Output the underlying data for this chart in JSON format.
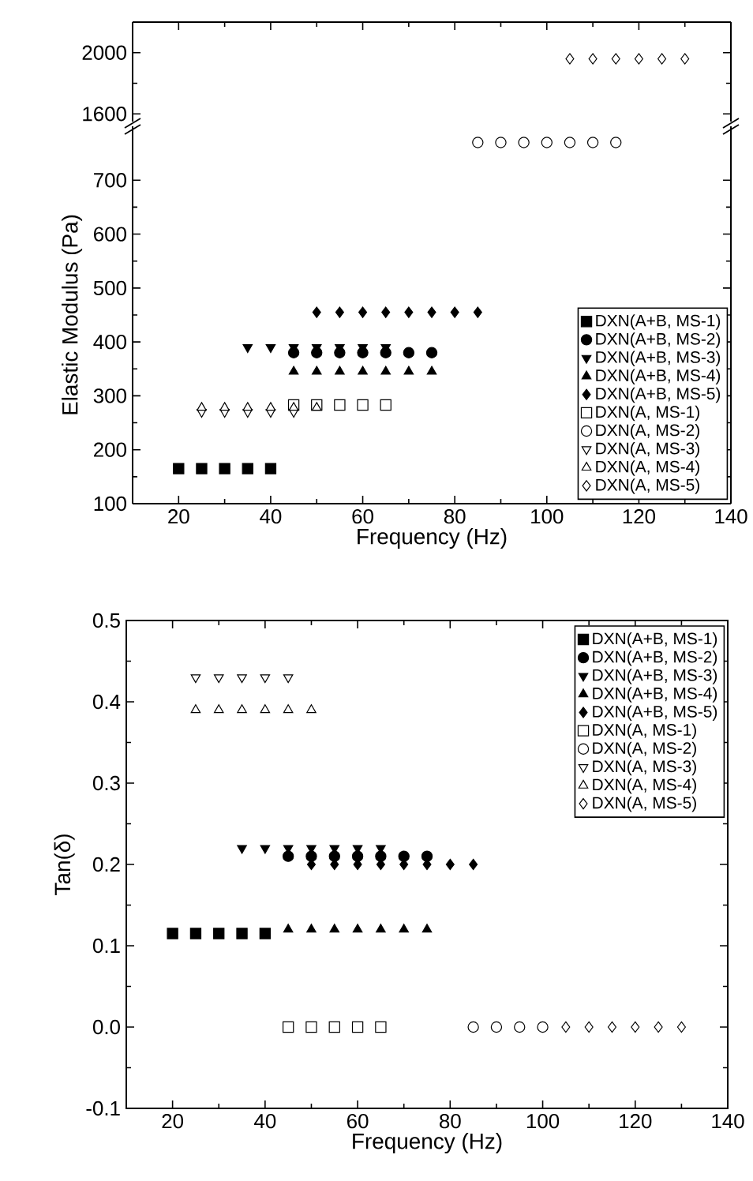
{
  "chart_data": [
    {
      "type": "scatter",
      "xlim": [
        10,
        140
      ],
      "xticks": [
        20,
        40,
        60,
        80,
        100,
        120,
        140
      ],
      "ylim": [
        1550,
        2200
      ],
      "yticks": [
        1600,
        2000
      ],
      "tick_labels": "y",
      "grid": false,
      "series": [
        {
          "color": "#000000",
          "marker": "diamond-open",
          "x": [
            105,
            110,
            115,
            120,
            125,
            130
          ],
          "values": [
            1960,
            1960,
            1960,
            1960,
            1960,
            1960
          ]
        }
      ]
    },
    {
      "type": "scatter",
      "xlabel": "Frequency (Hz)",
      "ylabel": "Elastic Modulus (Pa)",
      "xlim": [
        10,
        140
      ],
      "xticks": [
        20,
        40,
        60,
        80,
        100,
        120,
        140
      ],
      "ylim": [
        100,
        800
      ],
      "yticks": [
        100,
        200,
        300,
        400,
        500,
        600,
        700
      ],
      "grid": false,
      "legend": "bottom right",
      "series": [
        {
          "name": "DXN(A+B, MS-1)",
          "color": "#000000",
          "marker": "square",
          "x": [
            20,
            25,
            30,
            35,
            40
          ],
          "values": [
            165,
            165,
            165,
            165,
            165
          ]
        },
        {
          "name": "DXN(A+B, MS-2)",
          "color": "#000000",
          "marker": "circle",
          "x": [
            45,
            50,
            55,
            60,
            65,
            70,
            75
          ],
          "values": [
            380,
            380,
            380,
            380,
            380,
            380,
            380
          ]
        },
        {
          "name": "DXN(A+B, MS-3)",
          "color": "#000000",
          "marker": "triangle-down",
          "x": [
            35,
            40,
            45,
            50,
            55,
            60,
            65
          ],
          "values": [
            390,
            390,
            390,
            390,
            390,
            390,
            390
          ]
        },
        {
          "name": "DXN(A+B, MS-4)",
          "color": "#000000",
          "marker": "triangle",
          "x": [
            45,
            50,
            55,
            60,
            65,
            70,
            75
          ],
          "values": [
            345,
            345,
            345,
            345,
            345,
            345,
            345
          ]
        },
        {
          "name": "DXN(A+B, MS-5)",
          "color": "#000000",
          "marker": "diamond",
          "x": [
            50,
            55,
            60,
            65,
            70,
            75,
            80,
            85
          ],
          "values": [
            455,
            455,
            455,
            455,
            455,
            455,
            455,
            455
          ]
        },
        {
          "name": "DXN(A, MS-1)",
          "color": "#000000",
          "marker": "square-open",
          "x": [
            45,
            50,
            55,
            60,
            65
          ],
          "values": [
            283,
            283,
            283,
            283,
            283
          ]
        },
        {
          "name": "DXN(A, MS-2)",
          "color": "#000000",
          "marker": "circle-open",
          "x": [
            85,
            90,
            95,
            100,
            105,
            110,
            115
          ],
          "values": [
            770,
            770,
            770,
            770,
            770,
            770,
            770
          ]
        },
        {
          "name": "DXN(A, MS-3)",
          "color": "#000000",
          "marker": "triangle-down-open",
          "x": [
            25,
            30,
            35,
            40,
            45
          ],
          "values": [
            270,
            270,
            270,
            270,
            270
          ]
        },
        {
          "name": "DXN(A, MS-4)",
          "color": "#000000",
          "marker": "triangle-open",
          "x": [
            25,
            30,
            35,
            40,
            45,
            50
          ],
          "values": [
            278,
            278,
            278,
            278,
            278,
            278
          ]
        },
        {
          "name": "DXN(A, MS-5)",
          "color": "#000000",
          "marker": "diamond-open"
        }
      ]
    },
    {
      "type": "scatter",
      "xlabel": "Frequency (Hz)",
      "ylabel": "Tan(δ)",
      "xlim": [
        10,
        140
      ],
      "xticks": [
        20,
        40,
        60,
        80,
        100,
        120,
        140
      ],
      "ylim": [
        -0.1,
        0.5
      ],
      "yticks": [
        -0.1,
        {
          "value": 0,
          "label": "0.0"
        },
        0.1,
        0.2,
        0.3,
        0.4,
        0.5
      ],
      "grid": false,
      "legend": "top right",
      "series": [
        {
          "name": "DXN(A+B, MS-1)",
          "color": "#000000",
          "marker": "square",
          "x": [
            20,
            25,
            30,
            35,
            40
          ],
          "values": [
            0.115,
            0.115,
            0.115,
            0.115,
            0.115
          ]
        },
        {
          "name": "DXN(A+B, MS-2)",
          "color": "#000000",
          "marker": "circle",
          "x": [
            45,
            50,
            55,
            60,
            65,
            70,
            75
          ],
          "values": [
            0.21,
            0.21,
            0.21,
            0.21,
            0.21,
            0.21,
            0.21
          ]
        },
        {
          "name": "DXN(A+B, MS-3)",
          "color": "#000000",
          "marker": "triangle-down",
          "x": [
            35,
            40,
            45,
            50,
            55,
            60,
            65
          ],
          "values": [
            0.22,
            0.22,
            0.22,
            0.22,
            0.22,
            0.22,
            0.22
          ]
        },
        {
          "name": "DXN(A+B, MS-4)",
          "color": "#000000",
          "marker": "triangle",
          "x": [
            45,
            50,
            55,
            60,
            65,
            70,
            75
          ],
          "values": [
            0.12,
            0.12,
            0.12,
            0.12,
            0.12,
            0.12,
            0.12
          ]
        },
        {
          "name": "DXN(A+B, MS-5)",
          "color": "#000000",
          "marker": "diamond",
          "x": [
            50,
            55,
            60,
            65,
            70,
            75,
            80,
            85
          ],
          "values": [
            0.2,
            0.2,
            0.2,
            0.2,
            0.2,
            0.2,
            0.2,
            0.2
          ]
        },
        {
          "name": "DXN(A, MS-1)",
          "color": "#000000",
          "marker": "square-open",
          "x": [
            45,
            50,
            55,
            60,
            65
          ],
          "values": [
            0.0,
            0.0,
            0.0,
            0.0,
            0.0
          ]
        },
        {
          "name": "DXN(A, MS-2)",
          "color": "#000000",
          "marker": "circle-open",
          "x": [
            85,
            90,
            95,
            100
          ],
          "values": [
            0.0,
            0.0,
            0.0,
            0.0
          ]
        },
        {
          "name": "DXN(A, MS-3)",
          "color": "#000000",
          "marker": "triangle-down-open",
          "x": [
            25,
            30,
            35,
            40,
            45
          ],
          "values": [
            0.43,
            0.43,
            0.43,
            0.43,
            0.43
          ]
        },
        {
          "name": "DXN(A, MS-4)",
          "color": "#000000",
          "marker": "triangle-open",
          "x": [
            25,
            30,
            35,
            40,
            45,
            50
          ],
          "values": [
            0.39,
            0.39,
            0.39,
            0.39,
            0.39,
            0.39
          ]
        },
        {
          "name": "DXN(A, MS-5)",
          "color": "#000000",
          "marker": "diamond-open",
          "x": [
            105,
            110,
            115,
            120,
            125,
            130
          ],
          "values": [
            0.0,
            0.0,
            0.0,
            0.0,
            0.0,
            0.0
          ]
        }
      ]
    }
  ]
}
